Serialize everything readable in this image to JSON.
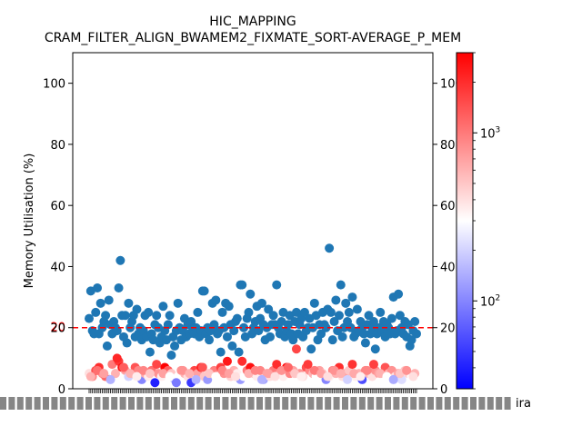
{
  "chart_data": {
    "type": "scatter",
    "title": "HIC_MAPPING",
    "subtitle": "CRAM_FILTER_ALIGN_BWAMEM2_FIXMATE_SORT-AVERAGE_P_MEM",
    "xlabel": "",
    "ylabel": "Memory Utilisation (%)",
    "ylim": [
      0,
      110
    ],
    "yticks": [
      0,
      20,
      40,
      60,
      80,
      100
    ],
    "right_yticks": [
      0,
      20,
      40,
      60,
      80,
      100
    ],
    "threshold": {
      "value": 20,
      "label": "20",
      "color": "#ff0000",
      "style": "dashed"
    },
    "x_tick_label_right": "ira",
    "colorbar": {
      "scale": "log",
      "range": [
        30,
        3000
      ],
      "ticks": [
        {
          "value": 100,
          "label": "10",
          "exp": "2"
        },
        {
          "value": 1000,
          "label": "10",
          "exp": "3"
        }
      ],
      "colormap": "bwr"
    },
    "series": [
      {
        "color": "#1f77b4",
        "x": [
          1,
          2,
          3,
          4,
          5,
          6,
          7,
          8,
          9,
          10,
          11,
          12,
          13,
          14,
          15,
          16,
          17,
          18,
          19,
          20,
          21,
          22,
          23,
          24,
          25,
          26,
          27,
          28,
          29,
          30,
          31,
          32,
          33,
          34,
          35,
          36,
          37,
          38,
          39,
          40,
          41,
          42,
          43,
          44,
          45,
          46,
          47,
          48,
          49,
          50,
          51,
          52,
          53,
          54,
          55,
          56,
          57,
          58,
          59,
          60,
          61,
          62,
          63,
          64,
          65,
          66,
          67,
          68,
          69,
          70,
          71,
          72,
          73,
          74,
          75,
          76,
          77,
          78,
          79,
          80,
          81,
          82,
          83,
          84,
          85,
          86,
          87,
          88,
          89,
          90,
          91,
          92,
          93,
          94,
          95,
          96,
          97,
          98,
          99,
          100,
          101,
          102,
          103,
          104,
          105,
          106,
          107,
          108,
          109,
          110,
          111,
          112,
          113,
          114,
          115,
          116,
          117,
          118,
          119,
          120,
          121,
          122,
          123,
          124,
          125,
          126,
          127,
          128,
          129,
          130,
          131,
          132,
          133,
          134,
          135,
          136,
          137,
          138,
          139,
          140,
          141,
          142,
          143,
          144,
          145,
          146,
          147,
          148,
          149,
          150,
          151,
          152,
          153,
          154,
          155,
          156,
          157,
          158,
          159,
          160,
          161,
          162,
          163,
          164,
          165,
          166,
          167,
          168,
          169,
          170,
          171,
          172,
          173,
          174,
          175,
          176,
          177,
          178,
          179,
          180,
          181,
          182,
          183,
          184,
          185,
          186,
          187,
          188,
          189,
          190,
          191,
          192,
          193,
          194,
          195,
          196,
          197,
          198,
          199,
          200
        ],
        "y": [
          23,
          32,
          19,
          18,
          25,
          33,
          18,
          28,
          20,
          22,
          24,
          14,
          29,
          21,
          18,
          22,
          20,
          19,
          33,
          42,
          24,
          17,
          24,
          15,
          28,
          20,
          22,
          24,
          17,
          26,
          18,
          20,
          16,
          19,
          24,
          17,
          25,
          12,
          18,
          16,
          21,
          24,
          20,
          15,
          17,
          27,
          19,
          16,
          21,
          24,
          11,
          17,
          14,
          19,
          28,
          20,
          16,
          19,
          23,
          17,
          21,
          18,
          22,
          19,
          18,
          20,
          25,
          17,
          19,
          32,
          32,
          18,
          20,
          16,
          19,
          28,
          21,
          29,
          18,
          19,
          12,
          25,
          20,
          28,
          17,
          27,
          21,
          14,
          19,
          22,
          23,
          12,
          34,
          34,
          20,
          17,
          23,
          25,
          31,
          18,
          20,
          22,
          27,
          19,
          23,
          28,
          21,
          16,
          20,
          26,
          17,
          21,
          24,
          21,
          34,
          20,
          18,
          22,
          25,
          17,
          19,
          21,
          24,
          18,
          16,
          22,
          25,
          18,
          21,
          23,
          17,
          25,
          19,
          20,
          23,
          13,
          20,
          28,
          24,
          16,
          21,
          18,
          25,
          21,
          20,
          26,
          46,
          25,
          16,
          22,
          29,
          19,
          24,
          34,
          17,
          20,
          28,
          22,
          25,
          20,
          30,
          17,
          18,
          26,
          19,
          22,
          20,
          18,
          15,
          21,
          24,
          18,
          20,
          22,
          13,
          18,
          20,
          25,
          19,
          22,
          17,
          21,
          20,
          18,
          23,
          30,
          18,
          19,
          31,
          24,
          20,
          18,
          22,
          17,
          21,
          14,
          16,
          19,
          22,
          18
        ]
      },
      {
        "name": "",
        "x": [
          1,
          3,
          5,
          7,
          9,
          11,
          13,
          15,
          17,
          19,
          21,
          23,
          25,
          27,
          29,
          31,
          33,
          35,
          37,
          39,
          41,
          43,
          45,
          47,
          49,
          51,
          53,
          55,
          57,
          59,
          61,
          63,
          65,
          67,
          69,
          71,
          73,
          75,
          77,
          79,
          81,
          83,
          85,
          87,
          89,
          91,
          93,
          95,
          97,
          99,
          101,
          103,
          105,
          107,
          109,
          111,
          113,
          115,
          117,
          119,
          121,
          123,
          125,
          127,
          129,
          131,
          133,
          135,
          137,
          139,
          141,
          143,
          145,
          147,
          149,
          151,
          153,
          155,
          157,
          159,
          161,
          163,
          165,
          167,
          169,
          171,
          173,
          175,
          177,
          179,
          181,
          183,
          185,
          187,
          189,
          191,
          193,
          195,
          197,
          199,
          2,
          6,
          10,
          14,
          18,
          22,
          26,
          30,
          34,
          38,
          42,
          46,
          50,
          54,
          58,
          62,
          66,
          70,
          74,
          78,
          82,
          86,
          90,
          94,
          98,
          102,
          106,
          110,
          114,
          118,
          122,
          126,
          130,
          134,
          138,
          142,
          146,
          150,
          154,
          158,
          162,
          166,
          170,
          174,
          178,
          182,
          186,
          190,
          194,
          198
        ],
        "y": [
          5,
          4,
          6,
          7,
          5,
          4,
          6,
          8,
          5,
          9,
          7,
          6,
          4,
          5,
          7,
          6,
          3,
          5,
          4,
          6,
          2,
          5,
          4,
          7,
          6,
          5,
          3,
          4,
          6,
          5,
          4,
          2,
          6,
          5,
          7,
          4,
          3,
          5,
          6,
          4,
          7,
          5,
          9,
          4,
          6,
          5,
          3,
          4,
          6,
          7,
          5,
          4,
          6,
          3,
          5,
          4,
          6,
          8,
          5,
          4,
          7,
          5,
          6,
          13,
          5,
          4,
          7,
          6,
          5,
          4,
          6,
          5,
          3,
          4,
          6,
          5,
          7,
          4,
          5,
          6,
          8,
          4,
          5,
          3,
          6,
          5,
          4,
          6,
          5,
          4,
          7,
          5,
          6,
          4,
          5,
          3,
          6,
          5,
          4,
          5,
          4,
          6,
          5,
          3,
          10,
          7,
          5,
          4,
          6,
          5,
          8,
          5,
          4,
          2,
          6,
          5,
          3,
          7,
          5,
          4,
          6,
          5,
          4,
          9,
          5,
          6,
          3,
          5,
          4,
          6,
          7,
          5,
          4,
          8,
          6,
          5,
          4,
          6,
          5,
          3,
          5,
          4,
          6,
          8,
          5,
          4,
          3,
          5,
          6,
          4
        ],
        "c": [
          400,
          900,
          1500,
          2000,
          800,
          1200,
          300,
          1000,
          600,
          1800,
          2500,
          700,
          200,
          500,
          1400,
          900,
          100,
          650,
          350,
          1100,
          40,
          800,
          350,
          3000,
          1300,
          500,
          180,
          300,
          800,
          600,
          400,
          50,
          1600,
          700,
          2200,
          500,
          120,
          600,
          950,
          300,
          1700,
          800,
          2400,
          450,
          600,
          350,
          120,
          300,
          1000,
          2600,
          500,
          350,
          900,
          130,
          700,
          400,
          1000,
          2000,
          700,
          350,
          2800,
          900,
          700,
          1600,
          800,
          400,
          1500,
          900,
          600,
          300,
          700,
          500,
          100,
          350,
          900,
          600,
          2000,
          400,
          700,
          500,
          1900,
          350,
          600,
          60,
          900,
          600,
          400,
          800,
          700,
          300,
          1400,
          600,
          800,
          400,
          700,
          220,
          500,
          450,
          300,
          600,
          600,
          1100,
          700,
          150,
          2100,
          1300,
          600,
          350,
          900,
          500,
          1600,
          700,
          300,
          90,
          800,
          600,
          150,
          1400,
          500,
          300,
          900,
          700,
          400,
          2000,
          600,
          900,
          150,
          700,
          400,
          800,
          1200,
          500,
          350,
          1800,
          1000,
          700,
          400,
          800,
          600,
          200,
          650,
          350,
          900,
          1700,
          600,
          300,
          140,
          500,
          800,
          400
        ]
      }
    ]
  },
  "x_tick_count": 200
}
